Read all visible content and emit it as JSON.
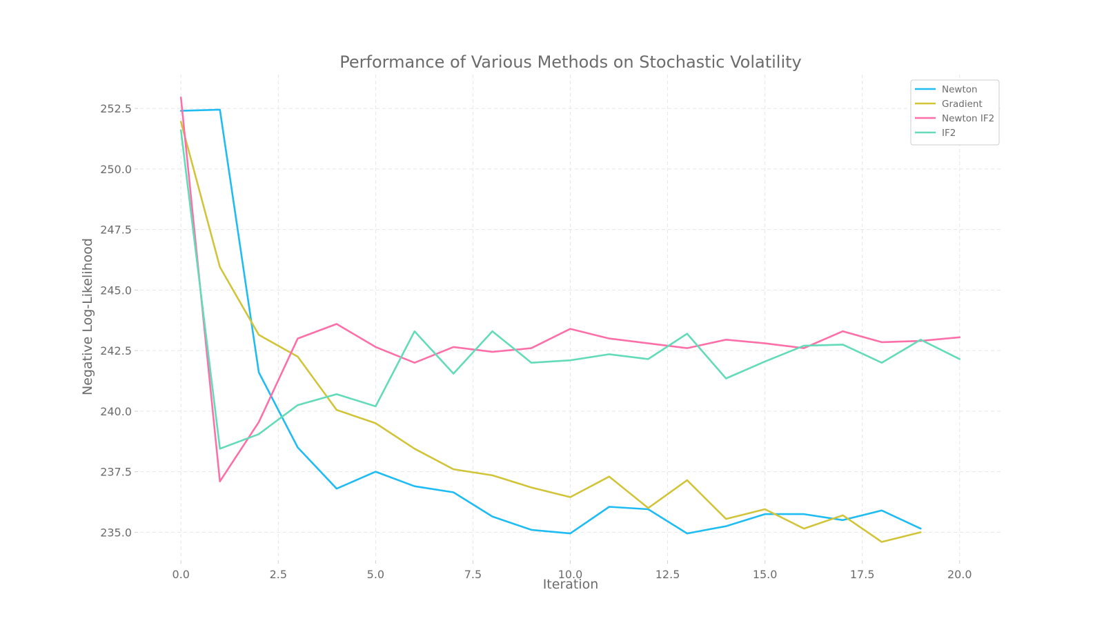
{
  "chart_data": {
    "type": "line",
    "title": "Performance of Various Methods on Stochastic Volatility",
    "xlabel": "Iteration",
    "ylabel": "Negative Log-Likelihood",
    "xlim": [
      -1.05,
      21.05
    ],
    "ylim": [
      233.9,
      253.9
    ],
    "xticks": [
      0.0,
      2.5,
      5.0,
      7.5,
      10.0,
      12.5,
      15.0,
      17.5,
      20.0
    ],
    "xtick_labels": [
      "0.0",
      "2.5",
      "5.0",
      "7.5",
      "10.0",
      "12.5",
      "15.0",
      "17.5",
      "20.0"
    ],
    "yticks": [
      235.0,
      237.5,
      240.0,
      242.5,
      245.0,
      247.5,
      250.0,
      252.5
    ],
    "ytick_labels": [
      "235.0",
      "237.5",
      "240.0",
      "242.5",
      "245.0",
      "247.5",
      "250.0",
      "252.5"
    ],
    "grid": true,
    "legend_position": "top-right",
    "series": [
      {
        "name": "Newton",
        "color": "#1ebcf2",
        "x": [
          0,
          1,
          2,
          3,
          4,
          5,
          6,
          7,
          8,
          9,
          10,
          11,
          12,
          13,
          14,
          15,
          16,
          17,
          18,
          19
        ],
        "y": [
          252.4,
          252.45,
          241.6,
          238.5,
          236.8,
          237.5,
          236.9,
          236.65,
          235.65,
          235.1,
          234.95,
          236.05,
          235.95,
          234.95,
          235.25,
          235.75,
          235.75,
          235.5,
          235.9,
          235.15
        ]
      },
      {
        "name": "Gradient",
        "color": "#d1c439",
        "x": [
          0,
          1,
          2,
          3,
          4,
          5,
          6,
          7,
          8,
          9,
          10,
          11,
          12,
          13,
          14,
          15,
          16,
          17,
          18,
          19
        ],
        "y": [
          251.95,
          245.95,
          243.15,
          242.25,
          240.05,
          239.5,
          238.45,
          237.6,
          237.35,
          236.85,
          236.45,
          237.3,
          236.0,
          237.15,
          235.55,
          235.95,
          235.15,
          235.7,
          234.6,
          235.0
        ]
      },
      {
        "name": "Newton IF2",
        "color": "#fc6fa8",
        "x": [
          0,
          1,
          2,
          3,
          4,
          5,
          6,
          7,
          8,
          9,
          10,
          11,
          12,
          13,
          14,
          15,
          16,
          17,
          18,
          19,
          20
        ],
        "y": [
          252.95,
          237.1,
          239.55,
          243.0,
          243.6,
          242.65,
          242.0,
          242.65,
          242.45,
          242.6,
          243.4,
          243.0,
          242.8,
          242.6,
          242.95,
          242.8,
          242.6,
          243.3,
          242.85,
          242.9,
          243.05
        ]
      },
      {
        "name": "IF2",
        "color": "#63dbb8",
        "x": [
          0,
          1,
          2,
          3,
          4,
          5,
          6,
          7,
          8,
          9,
          10,
          11,
          12,
          13,
          14,
          15,
          16,
          17,
          18,
          19,
          20
        ],
        "y": [
          251.6,
          238.45,
          239.05,
          240.25,
          240.7,
          240.2,
          243.3,
          241.55,
          243.3,
          242.0,
          242.1,
          242.35,
          242.15,
          243.2,
          241.35,
          242.05,
          242.7,
          242.75,
          242.0,
          242.95,
          242.15
        ]
      }
    ]
  }
}
